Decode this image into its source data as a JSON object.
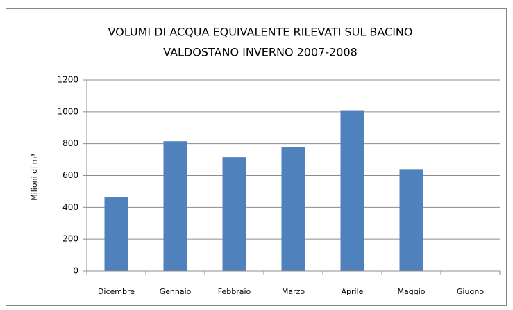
{
  "chart_data": {
    "type": "bar",
    "title": [
      "VOLUMI DI ACQUA EQUIVALENTE RILEVATI SUL BACINO",
      "VALDOSTANO INVERNO 2007-2008"
    ],
    "y_label": "Milioni di m³",
    "categories": [
      "Dicembre",
      "Gennaio",
      "Febbraio",
      "Marzo",
      "Aprile",
      "Maggio",
      "Giugno"
    ],
    "values": [
      465,
      815,
      715,
      780,
      1010,
      640,
      null
    ],
    "color": "#4f81bd",
    "ylim": [
      0,
      1200
    ],
    "yticks": [
      0,
      200,
      400,
      600,
      800,
      1000,
      1200
    ],
    "grid": true
  }
}
